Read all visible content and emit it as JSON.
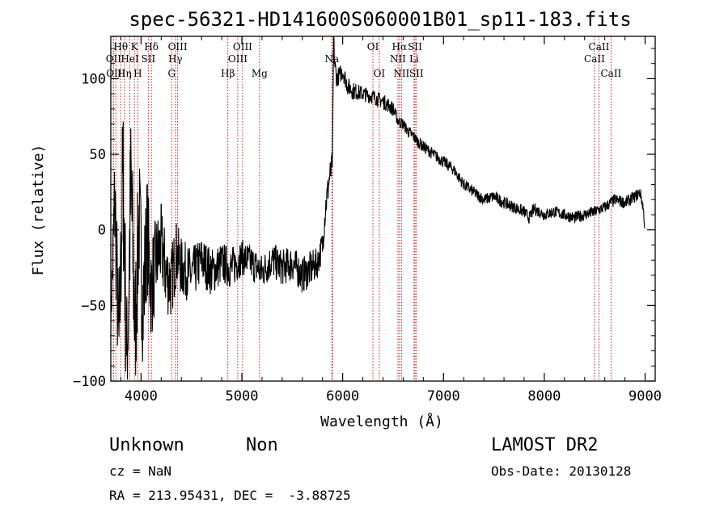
{
  "chart_data": {
    "type": "line",
    "title": "spec-56321-HD141600S060001B01_sp11-183.fits",
    "xlabel": "Wavelength (Å)",
    "ylabel": "Flux (relative)",
    "xlim": [
      3700,
      9100
    ],
    "ylim": [
      -100,
      128
    ],
    "xticks": [
      "4000",
      "5000",
      "6000",
      "7000",
      "8000",
      "9000"
    ],
    "yticks": [
      "−100",
      "−50",
      "0",
      "50",
      "100"
    ],
    "series": [
      {
        "x": [
          3700,
          3740,
          3780,
          3820,
          3860,
          3900,
          3940,
          3980,
          4020,
          4060,
          4100,
          4150,
          4200,
          4250,
          4300,
          4350,
          4400,
          4500,
          4600,
          4700,
          4800,
          4900,
          5000,
          5100,
          5200,
          5300,
          5400,
          5500,
          5600,
          5700,
          5750,
          5800,
          5830,
          5850,
          5870,
          5890,
          5900,
          5910,
          5920,
          5940,
          6000,
          6050,
          6100,
          6200,
          6300,
          6400,
          6500,
          6550,
          6600,
          6650,
          6700,
          6750,
          6800,
          6900,
          7000,
          7100,
          7200,
          7300,
          7400,
          7500,
          7600,
          7700,
          7800,
          7850,
          7900,
          8000,
          8100,
          8200,
          8300,
          8400,
          8500,
          8600,
          8700,
          8800,
          8900,
          8950,
          8980,
          9000
        ],
        "y": [
          -60,
          20,
          -80,
          40,
          -90,
          30,
          -70,
          10,
          -50,
          0,
          -40,
          -20,
          -10,
          -30,
          -35,
          -15,
          -25,
          -30,
          -20,
          -28,
          -22,
          -25,
          -18,
          -22,
          -28,
          -20,
          -25,
          -22,
          -30,
          -25,
          -22,
          -10,
          15,
          25,
          35,
          40,
          50,
          128,
          110,
          100,
          105,
          95,
          92,
          90,
          88,
          85,
          80,
          72,
          70,
          65,
          62,
          58,
          55,
          50,
          45,
          40,
          30,
          25,
          20,
          22,
          18,
          15,
          12,
          8,
          14,
          10,
          12,
          10,
          8,
          10,
          12,
          15,
          20,
          18,
          22,
          25,
          15,
          0
        ],
        "jitter": [
          10,
          45,
          40,
          55,
          50,
          60,
          50,
          45,
          45,
          40,
          35,
          30,
          28,
          26,
          25,
          22,
          20,
          18,
          16,
          16,
          14,
          14,
          12,
          12,
          12,
          12,
          12,
          12,
          12,
          12,
          10,
          10,
          10,
          10,
          10,
          10,
          8,
          8,
          8,
          6,
          6,
          6,
          6,
          5,
          5,
          5,
          5,
          4,
          4,
          4,
          4,
          4,
          4,
          4,
          4,
          4,
          4,
          4,
          4,
          4,
          4,
          4,
          4,
          4,
          4,
          4,
          4,
          4,
          4,
          4,
          4,
          4,
          4,
          4,
          4,
          4,
          4,
          4
        ]
      }
    ],
    "line_labels": [
      {
        "text": "Hθ",
        "x": 3798,
        "row": 0
      },
      {
        "text": "K",
        "x": 3934,
        "row": 0
      },
      {
        "text": "Hδ",
        "x": 4102,
        "row": 0
      },
      {
        "text": "OIII",
        "x": 4363,
        "row": 0
      },
      {
        "text": "OIII",
        "x": 5007,
        "row": 0
      },
      {
        "text": "OI",
        "x": 6300,
        "row": 0
      },
      {
        "text": "Hα",
        "x": 6563,
        "row": 0
      },
      {
        "text": "SII",
        "x": 6717,
        "row": 0
      },
      {
        "text": "CaII",
        "x": 8542,
        "row": 0
      },
      {
        "text": "OII",
        "x": 3727,
        "row": 1
      },
      {
        "text": "HeI",
        "x": 3889,
        "row": 1
      },
      {
        "text": "SII",
        "x": 4072,
        "row": 1
      },
      {
        "text": "Hγ",
        "x": 4340,
        "row": 1
      },
      {
        "text": "OIII",
        "x": 4959,
        "row": 1
      },
      {
        "text": "NII",
        "x": 6548,
        "row": 1
      },
      {
        "text": "Li",
        "x": 6708,
        "row": 1
      },
      {
        "text": "CaII",
        "x": 8498,
        "row": 1
      },
      {
        "text": "OIII",
        "x": 3750,
        "row": 2
      },
      {
        "text": "Hη",
        "x": 3835,
        "row": 2
      },
      {
        "text": "H",
        "x": 3968,
        "row": 2
      },
      {
        "text": "G",
        "x": 4304,
        "row": 2
      },
      {
        "text": "Hβ",
        "x": 4861,
        "row": 2
      },
      {
        "text": "Mg",
        "x": 5175,
        "row": 2
      },
      {
        "text": "OI",
        "x": 6363,
        "row": 2
      },
      {
        "text": "NII",
        "x": 6583,
        "row": 2
      },
      {
        "text": "SII",
        "x": 6731,
        "row": 2
      },
      {
        "text": "CaII",
        "x": 8662,
        "row": 2
      },
      {
        "text": "Na",
        "x": 5893,
        "row": 1
      }
    ],
    "line_markers": [
      3727,
      3750,
      3798,
      3835,
      3889,
      3934,
      3968,
      4072,
      4102,
      4304,
      4340,
      4363,
      4861,
      4959,
      5007,
      5175,
      5893,
      5900,
      6300,
      6363,
      6548,
      6563,
      6583,
      6708,
      6717,
      6731,
      8498,
      8542,
      8662
    ],
    "colors": {
      "line": "#000000",
      "markers": "#c00000"
    }
  },
  "info": {
    "class_label": "Unknown",
    "subclass_label": "Non",
    "survey": "LAMOST DR2",
    "cz": "cz = NaN",
    "obs_date": "Obs-Date: 20130128",
    "coords": "RA = 213.95431, DEC =  -3.88725"
  }
}
